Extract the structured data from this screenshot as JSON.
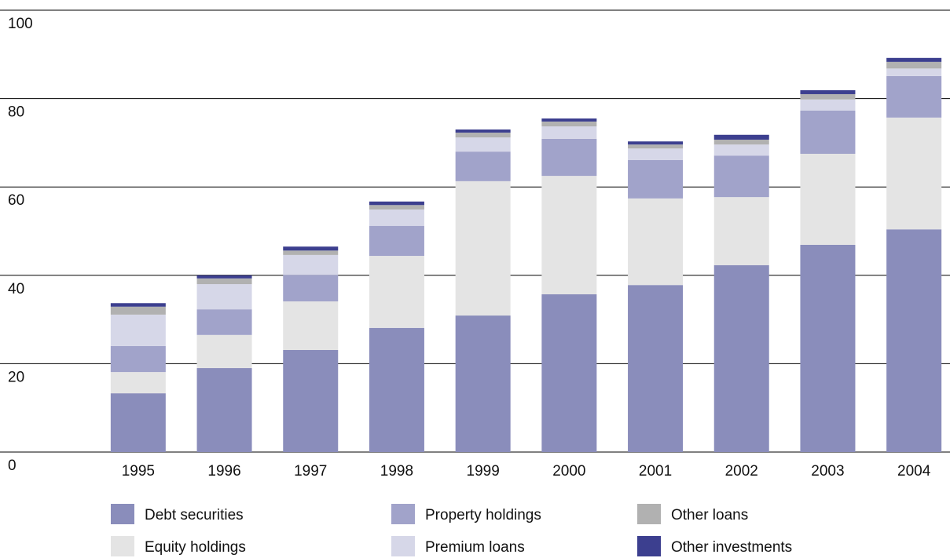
{
  "chart_data": {
    "type": "stacked-bar",
    "categories": [
      "1995",
      "1996",
      "1997",
      "1998",
      "1999",
      "2000",
      "2001",
      "2002",
      "2003",
      "2004"
    ],
    "series": [
      {
        "name": "Debt securities",
        "color": "#8a8dbb",
        "values": [
          13.3,
          19.0,
          23.1,
          28.1,
          30.9,
          35.7,
          37.8,
          42.3,
          46.9,
          50.4
        ]
      },
      {
        "name": "Equity holdings",
        "color": "#e4e4e4",
        "values": [
          4.8,
          7.5,
          11.0,
          16.3,
          30.4,
          26.8,
          19.6,
          15.4,
          20.6,
          25.3
        ]
      },
      {
        "name": "Property holdings",
        "color": "#a1a3ca",
        "values": [
          5.9,
          5.8,
          6.0,
          6.8,
          6.7,
          8.4,
          8.7,
          9.4,
          9.8,
          9.4
        ]
      },
      {
        "name": "Premium loans",
        "color": "#d6d7e8",
        "values": [
          7.1,
          5.7,
          4.5,
          3.7,
          3.2,
          2.8,
          2.6,
          2.5,
          2.5,
          1.7
        ]
      },
      {
        "name": "Other loans",
        "color": "#b1b1b1",
        "values": [
          1.8,
          1.3,
          1.0,
          1.0,
          1.1,
          1.1,
          0.9,
          1.1,
          1.2,
          1.5
        ]
      },
      {
        "name": "Other investments",
        "color": "#3c3f8f",
        "values": [
          0.8,
          0.7,
          0.9,
          0.8,
          0.7,
          0.7,
          0.7,
          1.1,
          0.9,
          0.9
        ]
      }
    ],
    "ylim": [
      0,
      100
    ],
    "yticks": [
      0,
      20,
      40,
      60,
      80,
      100
    ],
    "grid": true
  }
}
